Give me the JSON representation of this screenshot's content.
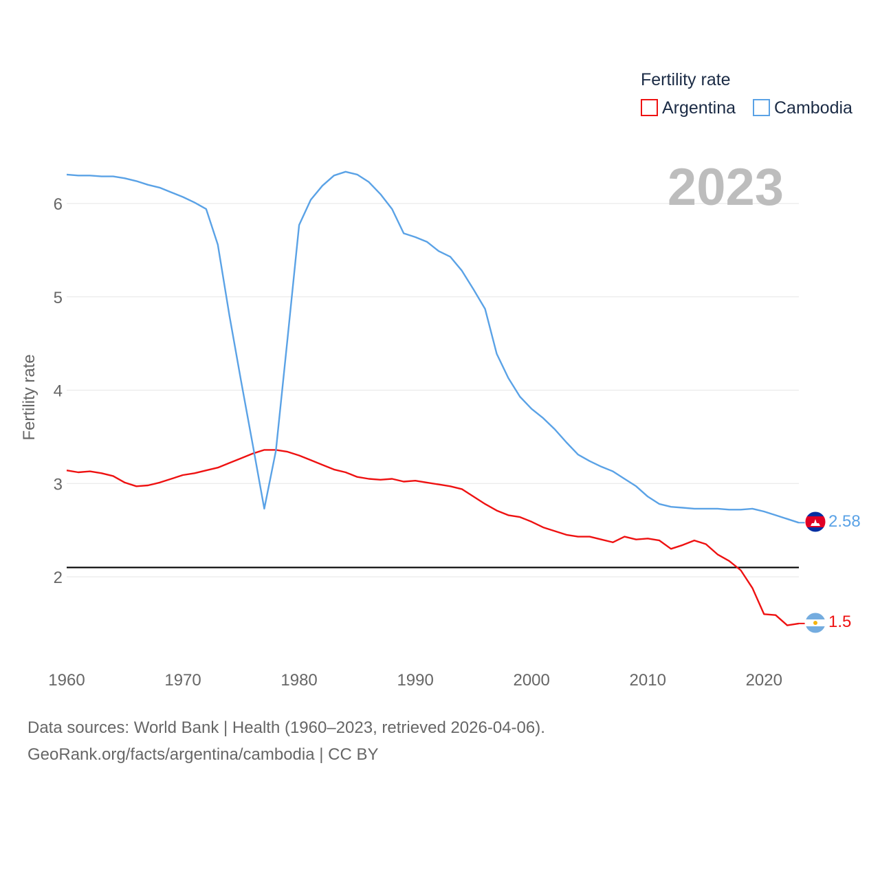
{
  "chart_data": {
    "type": "line",
    "year_display": "2023",
    "ylabel": "Fertility rate",
    "xlabel": "",
    "xlim": [
      1960,
      2023
    ],
    "ylim": [
      1.1,
      6.7
    ],
    "x_ticks": [
      1960,
      1970,
      1980,
      1990,
      2000,
      2010,
      2020
    ],
    "y_ticks": [
      2,
      3,
      4,
      5,
      6
    ],
    "reference_line": {
      "value": 2.1,
      "color": "#000000"
    },
    "legend": {
      "title": "Fertility rate",
      "position": "top-right"
    },
    "x": [
      1960,
      1961,
      1962,
      1963,
      1964,
      1965,
      1966,
      1967,
      1968,
      1969,
      1970,
      1971,
      1972,
      1973,
      1974,
      1975,
      1976,
      1977,
      1978,
      1979,
      1980,
      1981,
      1982,
      1983,
      1984,
      1985,
      1986,
      1987,
      1988,
      1989,
      1990,
      1991,
      1992,
      1993,
      1994,
      1995,
      1996,
      1997,
      1998,
      1999,
      2000,
      2001,
      2002,
      2003,
      2004,
      2005,
      2006,
      2007,
      2008,
      2009,
      2010,
      2011,
      2012,
      2013,
      2014,
      2015,
      2016,
      2017,
      2018,
      2019,
      2020,
      2021,
      2022,
      2023
    ],
    "series": [
      {
        "name": "Argentina",
        "color": "#ee1111",
        "end_label": "1.5",
        "flag": "argentina-flag",
        "values": [
          3.14,
          3.12,
          3.13,
          3.11,
          3.08,
          3.01,
          2.97,
          2.98,
          3.01,
          3.05,
          3.09,
          3.11,
          3.14,
          3.17,
          3.22,
          3.27,
          3.32,
          3.36,
          3.36,
          3.34,
          3.3,
          3.25,
          3.2,
          3.15,
          3.12,
          3.07,
          3.05,
          3.04,
          3.05,
          3.02,
          3.03,
          3.01,
          2.99,
          2.97,
          2.94,
          2.86,
          2.78,
          2.71,
          2.66,
          2.64,
          2.59,
          2.53,
          2.49,
          2.45,
          2.43,
          2.43,
          2.4,
          2.37,
          2.43,
          2.4,
          2.41,
          2.39,
          2.3,
          2.34,
          2.39,
          2.35,
          2.24,
          2.17,
          2.07,
          1.88,
          1.6,
          1.59,
          1.48,
          1.5
        ]
      },
      {
        "name": "Cambodia",
        "color": "#5aa2e6",
        "end_label": "2.58",
        "flag": "cambodia-flag",
        "values": [
          6.31,
          6.3,
          6.3,
          6.29,
          6.29,
          6.27,
          6.24,
          6.2,
          6.17,
          6.12,
          6.07,
          6.01,
          5.94,
          5.56,
          4.8,
          4.1,
          3.42,
          2.73,
          3.35,
          4.55,
          5.77,
          6.04,
          6.19,
          6.3,
          6.34,
          6.31,
          6.23,
          6.1,
          5.94,
          5.68,
          5.64,
          5.59,
          5.49,
          5.43,
          5.28,
          5.08,
          4.87,
          4.39,
          4.13,
          3.93,
          3.8,
          3.7,
          3.58,
          3.44,
          3.31,
          3.24,
          3.18,
          3.13,
          3.05,
          2.97,
          2.86,
          2.78,
          2.75,
          2.74,
          2.73,
          2.73,
          2.73,
          2.72,
          2.72,
          2.73,
          2.7,
          2.66,
          2.62,
          2.58
        ]
      }
    ]
  },
  "source": {
    "line1": "Data sources: World Bank | Health (1960–2023, retrieved 2026-04-06).",
    "line2": "GeoRank.org/facts/argentina/cambodia | CC BY"
  }
}
